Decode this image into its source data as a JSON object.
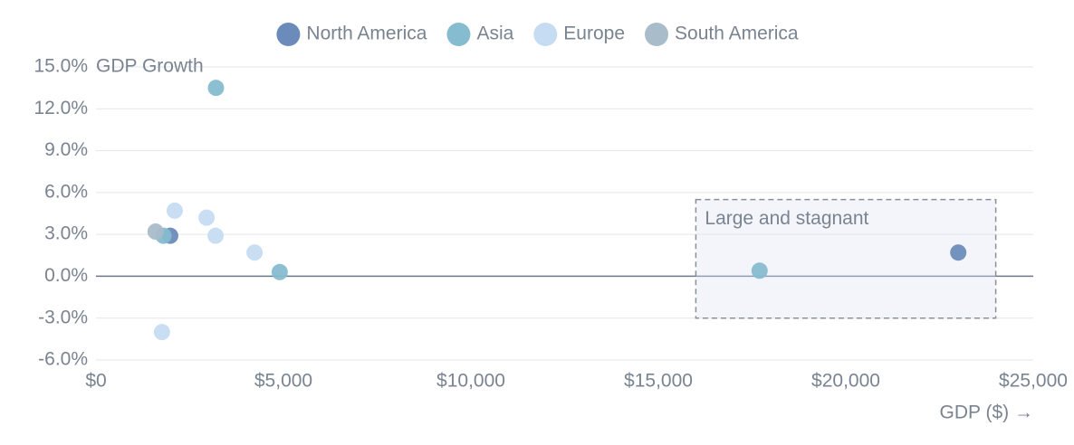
{
  "chart_data": {
    "type": "scatter",
    "y_label": "GDP Growth",
    "x_label": "GDP ($) →",
    "xlim": [
      0,
      25000
    ],
    "xticks": [
      {
        "value": 0,
        "label": "$0"
      },
      {
        "value": 5000,
        "label": "$5,000"
      },
      {
        "value": 10000,
        "label": "$10,000"
      },
      {
        "value": 15000,
        "label": "$15,000"
      },
      {
        "value": 20000,
        "label": "$20,000"
      },
      {
        "value": 25000,
        "label": "$25,000"
      }
    ],
    "ylim": [
      -6,
      15
    ],
    "yticks": [
      {
        "value": -6,
        "label": "-6.0%"
      },
      {
        "value": -3,
        "label": "-3.0%"
      },
      {
        "value": 0,
        "label": "0.0%"
      },
      {
        "value": 3,
        "label": "3.0%"
      },
      {
        "value": 6,
        "label": "6.0%"
      },
      {
        "value": 9,
        "label": "9.0%"
      },
      {
        "value": 12,
        "label": "12.0%"
      },
      {
        "value": 15,
        "label": "15.0%"
      }
    ],
    "grid": true,
    "legend": "top",
    "series": [
      {
        "name": "North America",
        "color": "#6b8cba",
        "x": [
          23000,
          1980
        ],
        "values": [
          1.7,
          2.9
        ]
      },
      {
        "name": "Asia",
        "color": "#86bccf",
        "x": [
          3200,
          4900,
          17700,
          1800
        ],
        "values": [
          13.5,
          0.3,
          0.4,
          2.9
        ]
      },
      {
        "name": "Europe",
        "color": "#c6dcf2",
        "x": [
          2100,
          2950,
          3190,
          4230,
          1760
        ],
        "values": [
          4.7,
          4.2,
          2.9,
          1.7,
          -4.0
        ]
      },
      {
        "name": "South America",
        "color": "#a9bcc9",
        "x": [
          1590
        ],
        "values": [
          3.2
        ]
      }
    ],
    "annotation": {
      "text": "Large and stagnant",
      "x": [
        16000,
        24000
      ],
      "y": [
        -3,
        5.5
      ]
    }
  }
}
